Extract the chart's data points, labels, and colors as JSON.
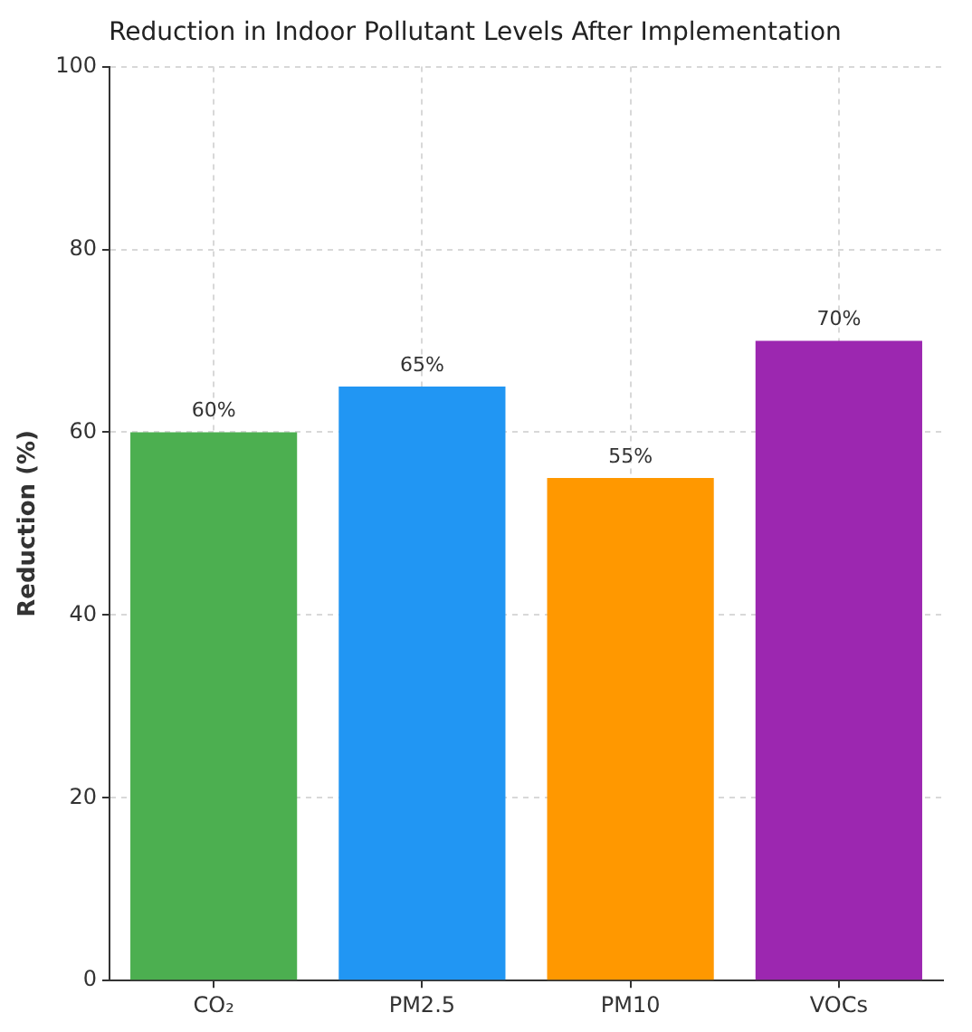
{
  "chart_data": {
    "type": "bar",
    "title": "Reduction in Indoor Pollutant Levels After Implementation",
    "ylabel": "Reduction (%)",
    "categories": [
      "CO₂",
      "PM2.5",
      "PM10",
      "VOCs"
    ],
    "values": [
      60,
      65,
      55,
      70
    ],
    "colors": [
      "#4caf50",
      "#2196f3",
      "#ff9800",
      "#9c27b0"
    ],
    "value_labels": [
      "60%",
      "65%",
      "55%",
      "70%"
    ],
    "ylim": [
      0,
      100
    ],
    "yticks": [
      0,
      20,
      40,
      60,
      80,
      100
    ],
    "grid": true
  }
}
